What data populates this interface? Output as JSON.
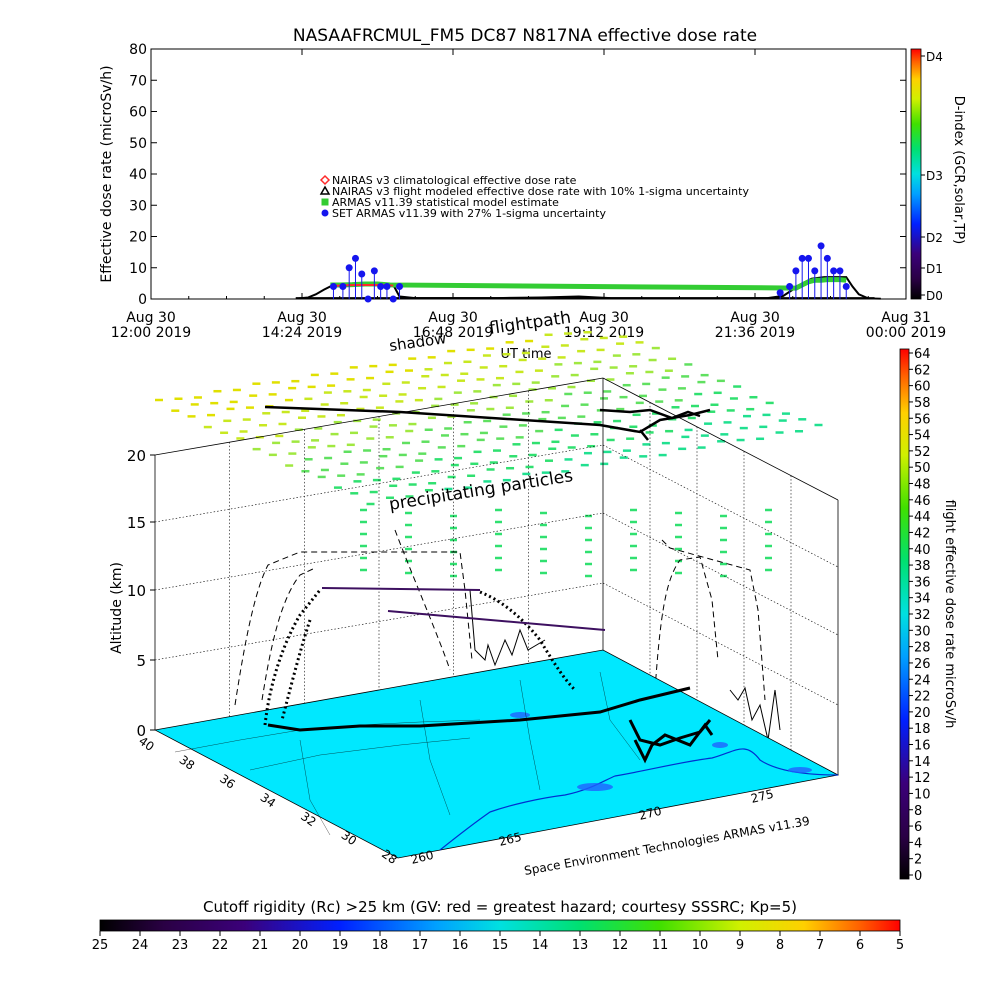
{
  "chart_data": [
    {
      "type": "line",
      "title": "NASAAFRCMUL_FM5 DC87 N817NA effective dose rate",
      "ylabel": "Effective dose rate (microSv/h)",
      "xlabel": "UT time",
      "ylim": [
        0,
        80
      ],
      "yticks": [
        "0",
        "10",
        "20",
        "30",
        "40",
        "50",
        "60",
        "70",
        "80"
      ],
      "xticks": [
        {
          "l1": "Aug 30",
          "l2": "12:00 2019",
          "h": 12.0
        },
        {
          "l1": "Aug 30",
          "l2": "14:24 2019",
          "h": 14.4
        },
        {
          "l1": "Aug 30",
          "l2": "16:48 2019",
          "h": 16.8
        },
        {
          "l1": "Aug 30",
          "l2": "19:12 2019",
          "h": 19.2
        },
        {
          "l1": "Aug 30",
          "l2": "21:36 2019",
          "h": 21.6
        },
        {
          "l1": "Aug 31",
          "l2": "00:00 2019",
          "h": 24.0
        }
      ],
      "xlim_hours": [
        12.0,
        24.0
      ],
      "legend": [
        {
          "label": "NAIRAS v3 climatological effective dose rate",
          "color": "#ff2a2a",
          "marker": "diamond"
        },
        {
          "label": "NAIRAS v3 flight modeled effective dose rate with 10% 1-sigma uncertainty",
          "color": "#000000",
          "marker": "triangle"
        },
        {
          "label": "ARMAS v11.39 statistical model estimate",
          "color": "#33cc33",
          "marker": "square"
        },
        {
          "label": "SET ARMAS v11.39 with 27% 1-sigma uncertainty",
          "color": "#1515ee",
          "marker": "circle"
        }
      ],
      "series": [
        {
          "name": "NAIRAS v3 flight modeled effective dose rate with 10% 1-sigma uncertainty",
          "color": "#000000",
          "x": [
            14.35,
            14.5,
            14.62,
            14.75,
            14.85,
            15.0,
            15.2,
            15.5,
            15.7,
            15.85,
            15.95,
            16.2,
            16.8,
            17.5,
            18.2,
            18.8,
            19.3,
            20.0,
            21.0,
            21.8,
            22.05,
            22.2,
            22.35,
            22.5,
            22.7,
            22.9,
            23.05,
            23.15,
            23.25,
            23.4,
            23.6
          ],
          "y": [
            0.2,
            0.5,
            1.5,
            3,
            4,
            4.5,
            4.8,
            5,
            5,
            4.5,
            0.8,
            0.3,
            0.3,
            0.3,
            0.5,
            0.8,
            0.3,
            0.2,
            0.2,
            0.3,
            1,
            3,
            5,
            6.5,
            7,
            7,
            7,
            4,
            1.5,
            0.2,
            0.1
          ]
        },
        {
          "name": "ARMAS v11.39 statistical model estimate",
          "color": "#33cc33",
          "x": [
            14.85,
            15.0,
            15.2,
            15.4,
            15.6,
            15.8,
            22.25,
            22.35,
            22.45,
            22.55,
            22.65,
            22.75,
            22.85,
            22.95,
            23.05
          ],
          "y": [
            4.5,
            4.5,
            4.6,
            4.8,
            4.8,
            4.5,
            3.5,
            4.5,
            5.5,
            6,
            6,
            6.2,
            6.2,
            6.2,
            6
          ]
        },
        {
          "name": "NAIRAS v3 climatological effective dose rate",
          "color": "#ff2a2a",
          "x": [
            14.9,
            15.1,
            15.3,
            15.5,
            15.7,
            15.85
          ],
          "y": [
            4.2,
            4.4,
            4.5,
            4.5,
            4.5,
            4.3
          ]
        },
        {
          "name": "SET ARMAS v11.39 with 27% 1-sigma uncertainty",
          "color": "#1515ee",
          "x": [
            14.9,
            15.05,
            15.15,
            15.25,
            15.35,
            15.45,
            15.55,
            15.65,
            15.75,
            15.85,
            15.95,
            22.0,
            22.15,
            22.25,
            22.35,
            22.45,
            22.55,
            22.65,
            22.75,
            22.85,
            22.95,
            23.05
          ],
          "y": [
            4,
            4,
            10,
            13,
            8,
            0,
            9,
            4,
            4,
            0,
            4,
            2,
            4,
            9,
            13,
            13,
            9,
            17,
            13,
            9,
            9,
            4
          ]
        }
      ],
      "d_index": {
        "label": "D-index (GCR,solar,TP)",
        "ticks": [
          "D0",
          "D1",
          "D2",
          "D3",
          "D4"
        ]
      }
    },
    {
      "type": "scatter",
      "ylabel": "Altitude (km)",
      "zticks": [
        "0",
        "5",
        "10",
        "15",
        "20"
      ],
      "lat_ticks": [
        "40",
        "38",
        "36",
        "34",
        "32",
        "30",
        "28"
      ],
      "lon_ticks": [
        "260",
        "265",
        "270",
        "275"
      ],
      "annotations": [
        "shadow",
        "flightpath",
        "precipitating particles"
      ],
      "credit": "Space Environment Technologies ARMAS v11.39",
      "dose_colorbar": {
        "label": "flight effective dose rate microSv/h",
        "ticks": [
          "0",
          "2",
          "4",
          "6",
          "8",
          "10",
          "12",
          "14",
          "16",
          "18",
          "20",
          "22",
          "24",
          "26",
          "28",
          "30",
          "32",
          "34",
          "36",
          "38",
          "40",
          "42",
          "44",
          "46",
          "48",
          "50",
          "52",
          "54",
          "56",
          "58",
          "60",
          "62",
          "64"
        ]
      },
      "rc_colorbar": {
        "label": "Cutoff rigidity (Rc) >25 km (GV: red = greatest hazard; courtesy SSSRC; Kp=5)",
        "ticks": [
          "25",
          "24",
          "23",
          "22",
          "21",
          "20",
          "19",
          "18",
          "17",
          "16",
          "15",
          "14",
          "13",
          "12",
          "11",
          "10",
          "9",
          "8",
          "7",
          "6",
          "5"
        ]
      }
    }
  ]
}
